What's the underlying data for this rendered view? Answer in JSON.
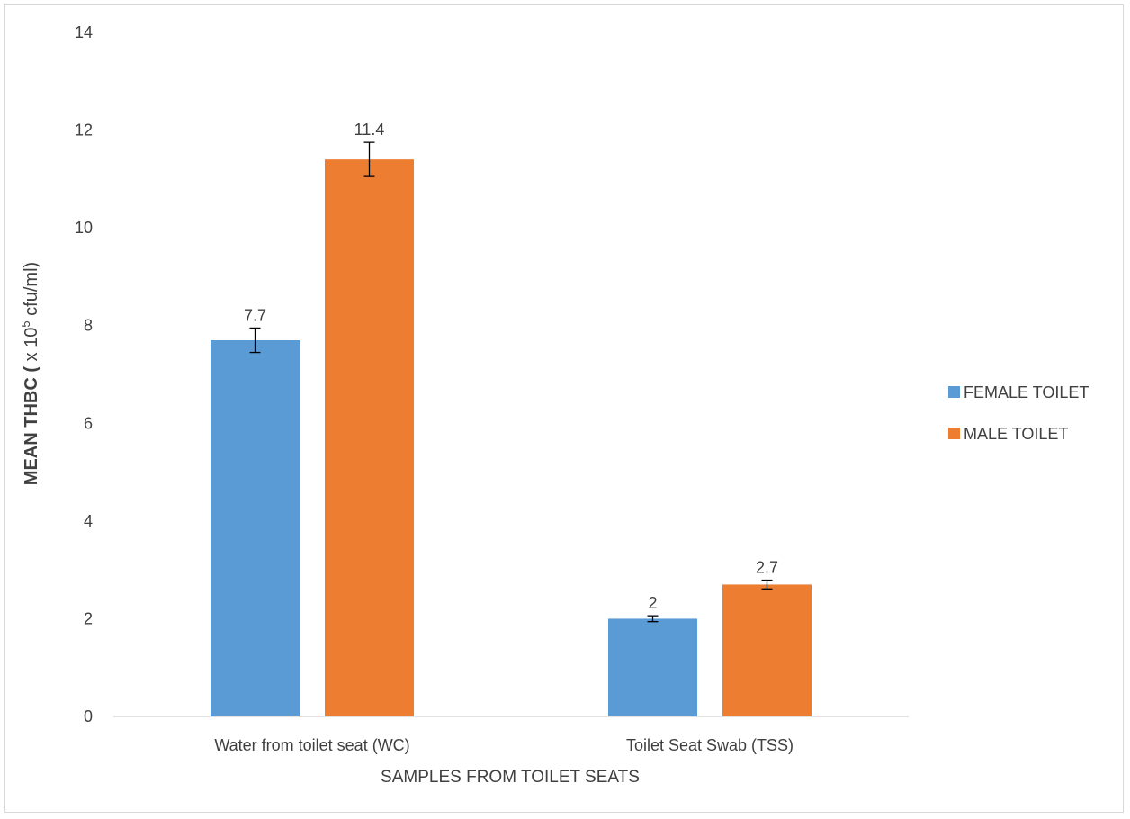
{
  "chart_data": {
    "type": "bar",
    "title": "",
    "xlabel": "SAMPLES FROM TOILET SEATS",
    "ylabel": {
      "prefix": "MEAN THBC (",
      "unit": " x 10",
      "exponent": "5",
      "suffix": " cfu/ml)"
    },
    "categories": [
      "Water  from toilet seat (WC)",
      "Toilet Seat Swab (TSS)"
    ],
    "series": [
      {
        "name": "FEMALE TOILET",
        "color": "#5b9bd5",
        "values": [
          7.7,
          2
        ],
        "errors": [
          0.25,
          0.06
        ],
        "labels": [
          "7.7",
          "2"
        ]
      },
      {
        "name": "MALE TOILET",
        "color": "#ed7d31",
        "values": [
          11.4,
          2.7
        ],
        "errors": [
          0.35,
          0.09
        ],
        "labels": [
          "11.4",
          "2.7"
        ]
      }
    ],
    "ylim": [
      0,
      14
    ],
    "yticks": [
      0,
      2,
      4,
      6,
      8,
      10,
      12,
      14
    ],
    "grid": false,
    "legend": "right"
  }
}
